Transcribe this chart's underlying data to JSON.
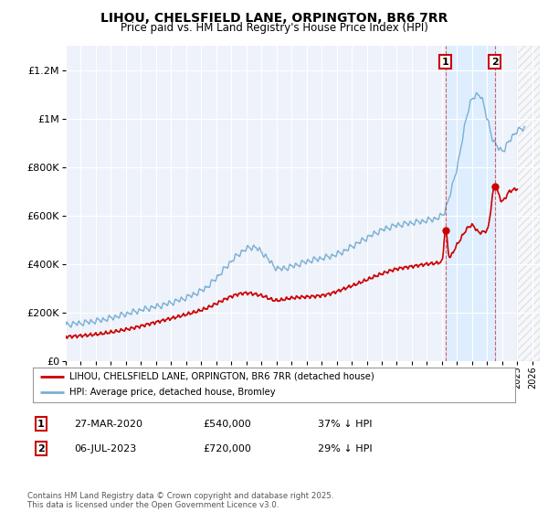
{
  "title": "LIHOU, CHELSFIELD LANE, ORPINGTON, BR6 7RR",
  "subtitle": "Price paid vs. HM Land Registry's House Price Index (HPI)",
  "ylim": [
    0,
    1300000
  ],
  "xlim_start": 1995.0,
  "xlim_end": 2026.5,
  "hpi_color": "#7bafd4",
  "price_color": "#cc0000",
  "annotation1_date": 2020.23,
  "annotation1_price": 540000,
  "annotation2_date": 2023.51,
  "annotation2_price": 720000,
  "highlight_color": "#ddeeff",
  "legend_label_red": "LIHOU, CHELSFIELD LANE, ORPINGTON, BR6 7RR (detached house)",
  "legend_label_blue": "HPI: Average price, detached house, Bromley",
  "table_row1": [
    "1",
    "27-MAR-2020",
    "£540,000",
    "37% ↓ HPI"
  ],
  "table_row2": [
    "2",
    "06-JUL-2023",
    "£720,000",
    "29% ↓ HPI"
  ],
  "footnote": "Contains HM Land Registry data © Crown copyright and database right 2025.\nThis data is licensed under the Open Government Licence v3.0.",
  "background_color": "#ffffff",
  "plot_bg_color": "#eef2fa",
  "grid_color": "#ffffff",
  "future_start": 2025.0
}
